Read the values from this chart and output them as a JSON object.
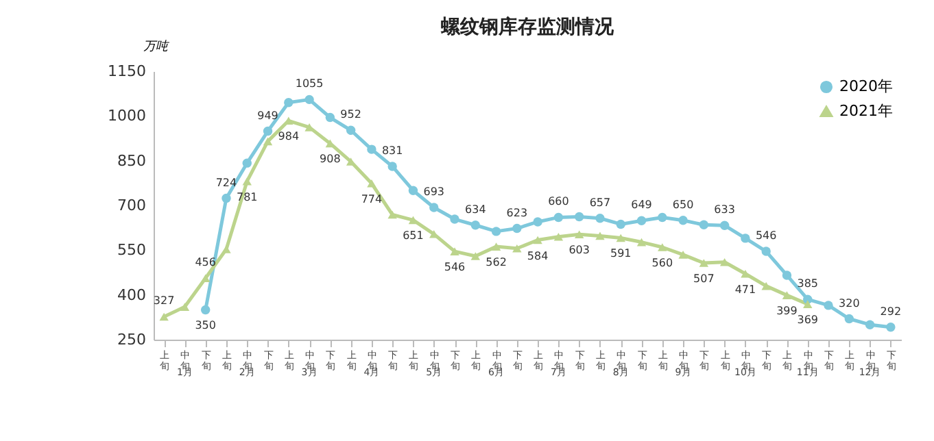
{
  "chart_data": {
    "type": "line",
    "title": "螺纹钢库存监测情况",
    "ylabel": "万吨",
    "categories": [
      "上旬",
      "中旬",
      "下旬",
      "上旬",
      "中旬",
      "下旬",
      "上旬",
      "中旬",
      "下旬",
      "上旬",
      "中旬",
      "下旬",
      "上旬",
      "中旬",
      "下旬",
      "上旬",
      "中旬",
      "下旬",
      "上旬",
      "中旬",
      "下旬",
      "上旬",
      "中旬",
      "下旬",
      "上旬",
      "中旬",
      "下旬",
      "上旬",
      "中旬",
      "下旬",
      "上旬",
      "中旬",
      "下旬",
      "上旬",
      "中旬",
      "下旬"
    ],
    "annotations": [
      "1月",
      "2月",
      "3月",
      "4月",
      "5月",
      "6月",
      "7月",
      "8月",
      "9月",
      "10月",
      "11月",
      "12月"
    ],
    "series": [
      {
        "name": "2020年",
        "color": "#7ec8dc",
        "marker": "circle",
        "values": [
          null,
          null,
          350,
          724,
          842,
          949,
          1045,
          1055,
          995,
          952,
          888,
          831,
          750,
          693,
          654,
          634,
          613,
          623,
          645,
          660,
          662,
          657,
          637,
          649,
          660,
          650,
          635,
          633,
          590,
          546,
          466,
          385,
          365,
          320,
          300,
          292
        ],
        "value_labels": [
          null,
          null,
          "350",
          "724",
          null,
          "949",
          null,
          "1055",
          null,
          "952",
          null,
          "831",
          null,
          "693",
          null,
          "634",
          null,
          "623",
          null,
          "660",
          null,
          "657",
          null,
          "649",
          null,
          "650",
          null,
          "633",
          null,
          "546",
          null,
          "385",
          null,
          "320",
          null,
          "292"
        ]
      },
      {
        "name": "2021年",
        "color": "#bcd48c",
        "marker": "triangle",
        "values": [
          327,
          360,
          456,
          553,
          781,
          915,
          984,
          962,
          908,
          847,
          774,
          669,
          651,
          604,
          546,
          530,
          562,
          556,
          584,
          595,
          603,
          598,
          591,
          577,
          560,
          535,
          507,
          510,
          471,
          430,
          399,
          369,
          null,
          null,
          null,
          null
        ],
        "value_labels": [
          "327",
          null,
          "456",
          null,
          "781",
          null,
          "984",
          null,
          "908",
          null,
          "774",
          null,
          "651",
          null,
          "546",
          null,
          "562",
          null,
          "584",
          null,
          "603",
          null,
          "591",
          null,
          "560",
          null,
          "507",
          null,
          "471",
          null,
          "399",
          "369",
          null,
          null,
          null,
          null
        ]
      }
    ],
    "ylim": [
      250,
      1150
    ],
    "yticks": [
      250,
      400,
      550,
      700,
      850,
      1000,
      1150
    ],
    "grid": false,
    "legend": "top right"
  }
}
